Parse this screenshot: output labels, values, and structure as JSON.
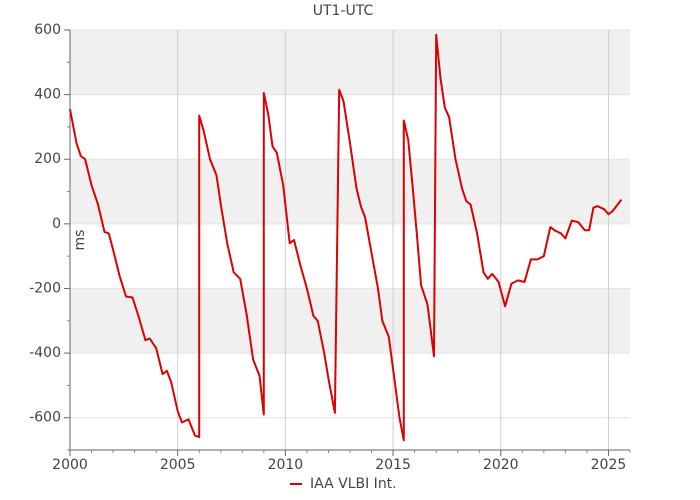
{
  "chart_data": {
    "type": "line",
    "title": "UT1-UTC",
    "y_label": "ms",
    "series": [
      {
        "name": "IAA VLBI Int.",
        "color": "#dd0000",
        "x": [
          2000.0,
          2000.3,
          2000.5,
          2000.7,
          2001.0,
          2001.3,
          2001.6,
          2001.8,
          2002.0,
          2002.3,
          2002.6,
          2002.9,
          2003.2,
          2003.5,
          2003.7,
          2004.0,
          2004.3,
          2004.5,
          2004.7,
          2005.0,
          2005.2,
          2005.5,
          2005.8,
          2006.0,
          2006.0,
          2006.2,
          2006.5,
          2006.8,
          2007.0,
          2007.3,
          2007.6,
          2007.9,
          2008.2,
          2008.5,
          2008.8,
          2009.0,
          2009.0,
          2009.2,
          2009.4,
          2009.6,
          2009.9,
          2010.2,
          2010.4,
          2010.7,
          2011.0,
          2011.3,
          2011.5,
          2011.8,
          2012.0,
          2012.3,
          2012.5,
          2012.7,
          2013.0,
          2013.3,
          2013.5,
          2013.7,
          2014.0,
          2014.3,
          2014.5,
          2014.8,
          2015.0,
          2015.3,
          2015.5,
          2015.5,
          2015.7,
          2015.9,
          2016.1,
          2016.3,
          2016.6,
          2016.9,
          2017.0,
          2017.2,
          2017.4,
          2017.6,
          2017.9,
          2018.2,
          2018.4,
          2018.6,
          2018.9,
          2019.2,
          2019.4,
          2019.6,
          2019.9,
          2020.2,
          2020.5,
          2020.8,
          2021.1,
          2021.4,
          2021.7,
          2022.0,
          2022.3,
          2022.5,
          2022.8,
          2023.0,
          2023.3,
          2023.6,
          2023.9,
          2024.1,
          2024.3,
          2024.5,
          2024.8,
          2025.0,
          2025.2,
          2025.6
        ],
        "values": [
          355,
          250,
          210,
          200,
          120,
          60,
          -25,
          -30,
          -80,
          -160,
          -225,
          -228,
          -290,
          -360,
          -355,
          -385,
          -465,
          -455,
          -490,
          -580,
          -615,
          -605,
          -655,
          -660,
          335,
          290,
          200,
          150,
          60,
          -60,
          -150,
          -170,
          -280,
          -420,
          -470,
          -590,
          405,
          340,
          240,
          220,
          120,
          -60,
          -50,
          -130,
          -200,
          -285,
          -300,
          -400,
          -480,
          -585,
          415,
          380,
          250,
          110,
          55,
          20,
          -90,
          -200,
          -300,
          -350,
          -450,
          -600,
          -670,
          320,
          260,
          120,
          -30,
          -190,
          -250,
          -410,
          585,
          450,
          360,
          330,
          200,
          110,
          70,
          60,
          -30,
          -150,
          -170,
          -155,
          -180,
          -255,
          -185,
          -175,
          -180,
          -110,
          -110,
          -100,
          -10,
          -20,
          -30,
          -45,
          10,
          5,
          -20,
          -20,
          50,
          55,
          45,
          30,
          40,
          75
        ]
      }
    ],
    "xlim": [
      2000,
      2026
    ],
    "xticks": [
      2000,
      2005,
      2010,
      2015,
      2020,
      2025
    ],
    "x_minor_ticks": [
      2001,
      2002,
      2003,
      2004,
      2006,
      2007,
      2008,
      2009,
      2011,
      2012,
      2013,
      2014,
      2016,
      2017,
      2018,
      2019,
      2021,
      2022,
      2023,
      2024,
      2026
    ],
    "ylim": [
      -700,
      600
    ],
    "yticks": [
      -600,
      -400,
      -200,
      0,
      200,
      400,
      600
    ],
    "y_minor_ticks": [
      -700,
      -500,
      -300,
      -100,
      100,
      300,
      500
    ],
    "grid": true,
    "bands": true,
    "legend": "bottom"
  }
}
